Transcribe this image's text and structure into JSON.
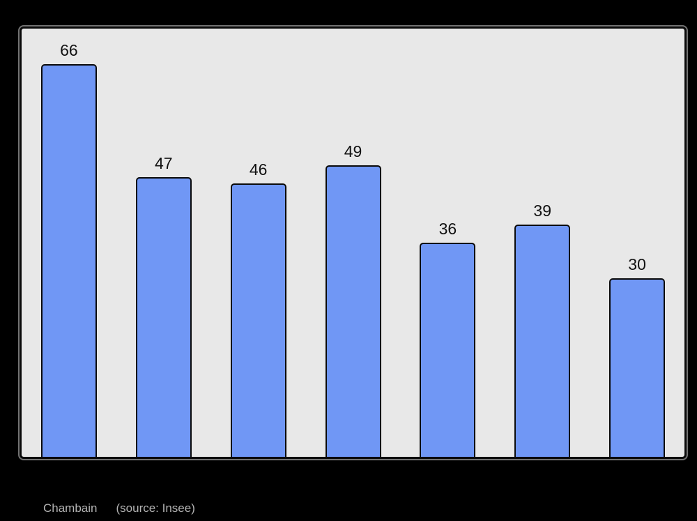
{
  "page": {
    "background": "#000000"
  },
  "caption": {
    "commune": "Chambain",
    "source": "(source: Insee)"
  },
  "chart_data": {
    "type": "bar",
    "values": [
      66,
      47,
      46,
      49,
      36,
      39,
      30
    ],
    "bar_value_labels": [
      "66",
      "47",
      "46",
      "49",
      "36",
      "39",
      "30"
    ],
    "title": "",
    "xlabel": "",
    "ylabel": "",
    "ylim": [
      0,
      72
    ],
    "grid": false,
    "legend": false,
    "layout": {
      "bar_count": 7,
      "value_labels_position": "above-bars",
      "axes_visible": false
    },
    "colors": {
      "page_background": "#000000",
      "plot_background": "#e8e8e8",
      "frame_border": "#0a0a0a",
      "bar_fill": "#7097f5",
      "bar_border": "#0a0a0a",
      "value_label": "#111111",
      "caption_text": "#b3b3b3"
    }
  }
}
